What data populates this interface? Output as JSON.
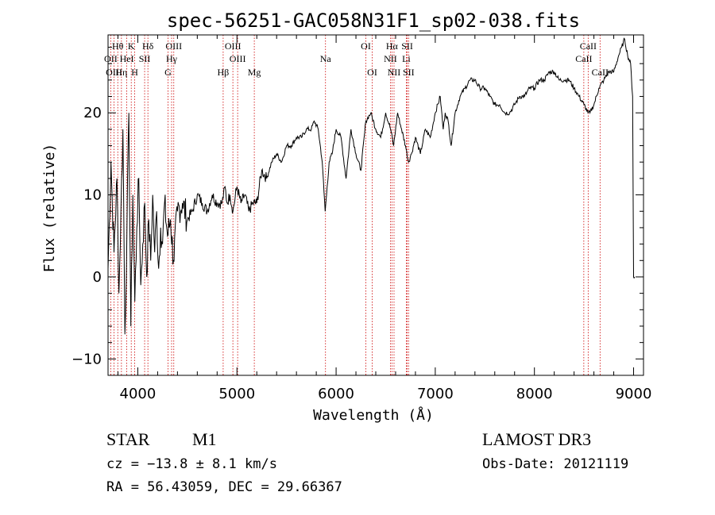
{
  "chart_data": {
    "type": "line",
    "title": "spec-56251-GAC058N31F1_sp02-038.fits",
    "xlabel": "Wavelength (Å)",
    "ylabel": "Flux (relative)",
    "xlim": [
      3700,
      9100
    ],
    "ylim": [
      -12,
      29.5
    ],
    "xticks": [
      4000,
      5000,
      6000,
      7000,
      8000,
      9000
    ],
    "xtick_labels": [
      "4000",
      "5000",
      "6000",
      "7000",
      "8000",
      "9000"
    ],
    "yticks": [
      -10,
      0,
      10,
      20
    ],
    "ytick_labels": [
      "−10",
      "0",
      "10",
      "20"
    ],
    "grid": false,
    "series": [
      {
        "name": "flux",
        "color": "#000000",
        "x": [
          3700,
          3730,
          3760,
          3790,
          3810,
          3830,
          3850,
          3870,
          3890,
          3910,
          3930,
          3950,
          3970,
          3990,
          4010,
          4030,
          4050,
          4070,
          4090,
          4110,
          4130,
          4150,
          4170,
          4190,
          4210,
          4230,
          4250,
          4270,
          4300,
          4330,
          4360,
          4400,
          4450,
          4500,
          4550,
          4600,
          4650,
          4700,
          4750,
          4800,
          4850,
          4880,
          4900,
          4930,
          4960,
          5000,
          5040,
          5080,
          5120,
          5160,
          5200,
          5250,
          5300,
          5350,
          5400,
          5450,
          5500,
          5550,
          5600,
          5650,
          5700,
          5750,
          5780,
          5820,
          5860,
          5890,
          5910,
          5930,
          5960,
          6000,
          6050,
          6100,
          6150,
          6200,
          6250,
          6300,
          6350,
          6400,
          6450,
          6500,
          6550,
          6580,
          6620,
          6660,
          6700,
          6730,
          6760,
          6800,
          6850,
          6900,
          6950,
          7000,
          7050,
          7080,
          7100,
          7130,
          7160,
          7200,
          7250,
          7300,
          7350,
          7400,
          7450,
          7500,
          7550,
          7600,
          7650,
          7700,
          7750,
          7800,
          7850,
          7900,
          7950,
          8000,
          8050,
          8100,
          8150,
          8200,
          8250,
          8300,
          8350,
          8400,
          8450,
          8500,
          8540,
          8560,
          8600,
          8650,
          8700,
          8750,
          8800,
          8850,
          8880,
          8910,
          8940,
          8970,
          8990,
          9000,
          9010
        ],
        "y": [
          1,
          14,
          3,
          12,
          -2,
          8,
          18,
          -7,
          5,
          20,
          -6,
          10,
          -3,
          6,
          12,
          -1,
          4,
          9,
          0,
          7,
          2,
          10,
          3,
          8,
          1,
          6,
          4,
          9,
          5,
          7,
          2,
          8,
          9,
          7,
          8,
          10,
          9,
          8,
          10,
          9,
          9,
          11,
          9,
          10,
          8,
          11,
          9,
          10,
          8,
          9,
          9,
          13,
          12,
          14,
          15,
          14,
          16,
          16,
          17,
          17,
          18,
          18,
          19,
          18,
          14,
          8,
          11,
          14,
          15,
          18,
          17,
          12,
          18,
          15,
          13,
          19,
          20,
          18,
          17,
          20,
          18,
          16,
          20,
          18,
          16,
          14,
          15,
          17,
          15,
          18,
          17,
          20,
          22,
          18,
          20,
          19,
          16,
          20,
          22,
          23,
          24,
          24,
          23,
          23,
          22,
          21,
          21,
          20,
          20,
          21,
          22,
          22,
          23,
          23,
          24,
          24,
          25,
          25,
          24,
          24,
          24,
          23,
          22,
          21,
          20,
          20,
          21,
          23,
          24,
          25,
          25,
          27,
          28,
          29,
          27,
          26,
          22,
          0,
          0
        ]
      }
    ],
    "lines": [
      {
        "label": "Hθ",
        "w": 3798,
        "row": 1
      },
      {
        "label": "OII",
        "w": 3727,
        "row": 2
      },
      {
        "label": "OIII",
        "w": 3760,
        "row": 3
      },
      {
        "label": "Hη",
        "w": 3835,
        "row": 3
      },
      {
        "label": "K",
        "w": 3934,
        "row": 1
      },
      {
        "label": "HeI",
        "w": 3889,
        "row": 2
      },
      {
        "label": "H",
        "w": 3969,
        "row": 3
      },
      {
        "label": "SII",
        "w": 4069,
        "row": 2
      },
      {
        "label": "Hδ",
        "w": 4102,
        "row": 1
      },
      {
        "label": "OIII",
        "w": 4363,
        "row": 1
      },
      {
        "label": "Hγ",
        "w": 4341,
        "row": 2
      },
      {
        "label": "G",
        "w": 4305,
        "row": 3
      },
      {
        "label": "Hβ",
        "w": 4861,
        "row": 3
      },
      {
        "label": "OIII",
        "w": 4959,
        "row": 1
      },
      {
        "label": "OIII",
        "w": 5007,
        "row": 2
      },
      {
        "label": "Mg",
        "w": 5175,
        "row": 3
      },
      {
        "label": "Na",
        "w": 5893,
        "row": 2
      },
      {
        "label": "OI",
        "w": 6300,
        "row": 1
      },
      {
        "label": "OI",
        "w": 6364,
        "row": 3
      },
      {
        "label": "Hα",
        "w": 6563,
        "row": 1
      },
      {
        "label": "NII",
        "w": 6548,
        "row": 2
      },
      {
        "label": "NII",
        "w": 6584,
        "row": 3
      },
      {
        "label": "SII",
        "w": 6717,
        "row": 1
      },
      {
        "label": "Li",
        "w": 6708,
        "row": 2
      },
      {
        "label": "SII",
        "w": 6731,
        "row": 3
      },
      {
        "label": "CaII",
        "w": 8542,
        "row": 1
      },
      {
        "label": "CaII",
        "w": 8498,
        "row": 2
      },
      {
        "label": "CaII",
        "w": 8662,
        "row": 3
      }
    ]
  },
  "info": {
    "star_type": "STAR",
    "subclass": "M1",
    "survey": "LAMOST DR3",
    "cz": "cz = −13.8 ± 8.1 km/s",
    "obs_date": "Obs-Date: 20121119",
    "coords": "RA =  56.43059, DEC =  29.66367"
  }
}
